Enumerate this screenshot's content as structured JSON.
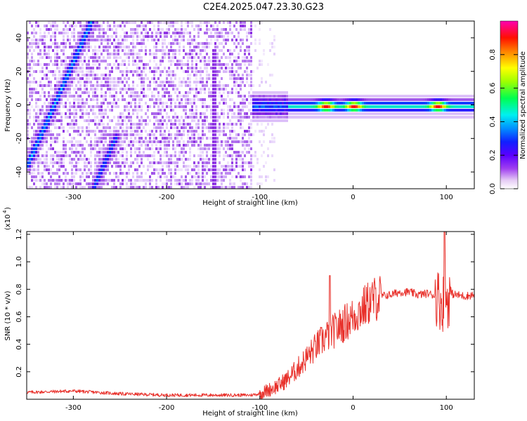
{
  "title": "C2E4.2025.047.23.30.G23",
  "chart_data": [
    {
      "type": "heatmap",
      "xlabel": "Height of straight line (km)",
      "ylabel": "Frequency (Hz)",
      "xlim": [
        -350,
        130
      ],
      "ylim": [
        -50,
        50
      ],
      "xticks": [
        -300,
        -200,
        -100,
        0,
        100
      ],
      "yticks": [
        -40,
        -20,
        0,
        20,
        40
      ],
      "colorbar": {
        "label": "Normalized spectral amplitude",
        "range": [
          0,
          1
        ],
        "ticks": [
          0.0,
          0.2,
          0.4,
          0.6,
          0.8
        ],
        "colormap": [
          "#ffffff",
          "#d8b8f8",
          "#8a2be2",
          "#4010ff",
          "#0050ff",
          "#00d8ff",
          "#00ff60",
          "#a0ff00",
          "#ffff00",
          "#ff8000",
          "#ff0000",
          "#ff00a0"
        ]
      },
      "features": [
        {
          "name": "diagonal streak upper",
          "x": [
            -350,
            -282
          ],
          "y": [
            -35,
            50
          ],
          "amplitude": 0.4
        },
        {
          "name": "diagonal streak lower",
          "x": [
            -280,
            -255
          ],
          "y": [
            -50,
            -18
          ],
          "amplitude": 0.35
        },
        {
          "name": "vertical line",
          "x": [
            -150,
            -150
          ],
          "y": [
            -50,
            35
          ],
          "amplitude": 0.25
        },
        {
          "name": "horizontal band",
          "x": [
            -110,
            130
          ],
          "y": [
            0,
            0
          ],
          "amplitude": 0.5,
          "peaks_at": [
            -30,
            0,
            90
          ]
        }
      ]
    },
    {
      "type": "line",
      "xlabel": "Height of straight line (km)",
      "ylabel": "SNR (10 * v/v)",
      "y_multiplier": "(x10^4)",
      "xlim": [
        -350,
        130
      ],
      "ylim": [
        0,
        1.22
      ],
      "xticks": [
        -300,
        -200,
        -100,
        0,
        100
      ],
      "yticks": [
        0.2,
        0.4,
        0.6,
        0.8,
        1.0,
        1.2
      ],
      "series_color": "#e8302a",
      "series": [
        {
          "x": [
            -350,
            -300,
            -250,
            -200,
            -150,
            -110,
            -100,
            -90,
            -80,
            -70,
            -60,
            -50,
            -40,
            -30,
            -20,
            -10,
            0,
            10,
            20,
            30,
            40,
            50,
            60,
            70,
            80,
            90,
            95,
            100,
            105,
            110,
            120,
            130
          ],
          "values": [
            0.05,
            0.06,
            0.04,
            0.03,
            0.03,
            0.03,
            0.04,
            0.07,
            0.1,
            0.15,
            0.22,
            0.3,
            0.38,
            0.45,
            0.5,
            0.55,
            0.6,
            0.66,
            0.72,
            0.75,
            0.76,
            0.78,
            0.78,
            0.76,
            0.77,
            0.75,
            0.7,
            0.72,
            0.77,
            0.76,
            0.75,
            0.76
          ]
        }
      ],
      "annotations": [
        {
          "x": -25,
          "y": 0.9,
          "text": "spike"
        },
        {
          "x": 98,
          "y": 1.22,
          "text": "spike"
        }
      ]
    }
  ]
}
